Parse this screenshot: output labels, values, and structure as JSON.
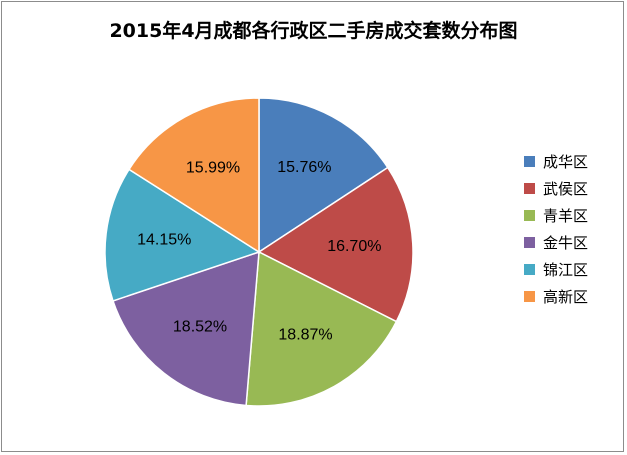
{
  "chart_data": {
    "type": "pie",
    "title": "2015年4月成都各行政区二手房成交套数分布图",
    "categories": [
      "成华区",
      "武侯区",
      "青羊区",
      "金牛区",
      "锦江区",
      "高新区"
    ],
    "values": [
      15.76,
      16.7,
      18.87,
      18.52,
      14.15,
      15.99
    ],
    "value_labels": [
      "15.76%",
      "16.70%",
      "18.87%",
      "18.52%",
      "14.15%",
      "15.99%"
    ],
    "colors": [
      "#4a7ebb",
      "#be4b48",
      "#98b954",
      "#7d60a0",
      "#46aac5",
      "#f79646"
    ],
    "legend_position": "right"
  }
}
